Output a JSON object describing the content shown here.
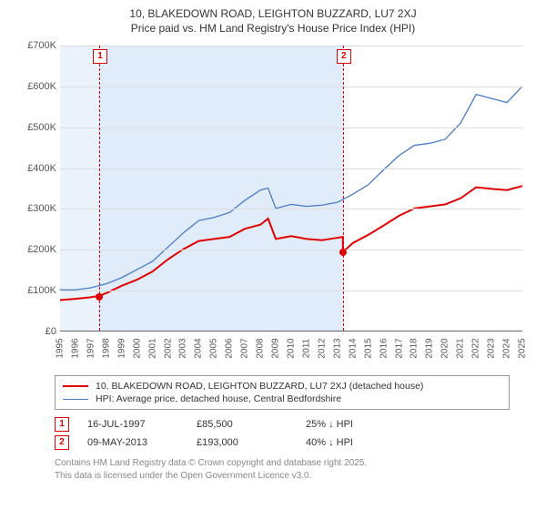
{
  "title": "10, BLAKEDOWN ROAD, LEIGHTON BUZZARD, LU7 2XJ",
  "subtitle": "Price paid vs. HM Land Registry's House Price Index (HPI)",
  "chart": {
    "type": "line",
    "background_color": "#ffffff",
    "grid_color": "#dddddd",
    "shade_color": "rgba(200,220,245,0.55)",
    "marker_color": "#e00000",
    "x": {
      "min": 1995,
      "max": 2025,
      "ticks": [
        1995,
        1996,
        1997,
        1998,
        1999,
        2000,
        2001,
        2002,
        2003,
        2004,
        2005,
        2006,
        2007,
        2008,
        2009,
        2010,
        2011,
        2012,
        2013,
        2014,
        2015,
        2016,
        2017,
        2018,
        2019,
        2020,
        2021,
        2022,
        2023,
        2024,
        2025
      ],
      "label_fontsize": 10
    },
    "y": {
      "min": 0,
      "max": 700000,
      "ticks": [
        0,
        100000,
        200000,
        300000,
        400000,
        500000,
        600000,
        700000
      ],
      "tick_labels": [
        "£0",
        "£100K",
        "£200K",
        "£300K",
        "£400K",
        "£500K",
        "£600K",
        "£700K"
      ],
      "label_fontsize": 11
    },
    "shaded_regions": [
      {
        "start": 1995,
        "end": 1997.54
      },
      {
        "start": 1997.54,
        "end": 2013.35
      }
    ],
    "series": [
      {
        "name": "price_paid",
        "label": "10, BLAKEDOWN ROAD, LEIGHTON BUZZARD, LU7 2XJ (detached house)",
        "color": "#e00000",
        "line_width": 2,
        "points": [
          [
            1995,
            75000
          ],
          [
            1996,
            78000
          ],
          [
            1997,
            82000
          ],
          [
            1997.54,
            85500
          ],
          [
            1998,
            92000
          ],
          [
            1999,
            110000
          ],
          [
            2000,
            125000
          ],
          [
            2001,
            145000
          ],
          [
            2002,
            175000
          ],
          [
            2003,
            200000
          ],
          [
            2004,
            220000
          ],
          [
            2005,
            225000
          ],
          [
            2006,
            230000
          ],
          [
            2007,
            250000
          ],
          [
            2008,
            260000
          ],
          [
            2008.5,
            275000
          ],
          [
            2009,
            225000
          ],
          [
            2010,
            232000
          ],
          [
            2011,
            225000
          ],
          [
            2012,
            222000
          ],
          [
            2013,
            228000
          ],
          [
            2013.35,
            230000
          ],
          [
            2013.36,
            193000
          ],
          [
            2014,
            215000
          ],
          [
            2015,
            235000
          ],
          [
            2016,
            258000
          ],
          [
            2017,
            282000
          ],
          [
            2018,
            300000
          ],
          [
            2019,
            305000
          ],
          [
            2020,
            310000
          ],
          [
            2021,
            325000
          ],
          [
            2022,
            352000
          ],
          [
            2023,
            348000
          ],
          [
            2024,
            345000
          ],
          [
            2025,
            355000
          ]
        ]
      },
      {
        "name": "hpi",
        "label": "HPI: Average price, detached house, Central Bedfordshire",
        "color": "#4a7bc8",
        "line_width": 1.3,
        "points": [
          [
            1995,
            100000
          ],
          [
            1996,
            100000
          ],
          [
            1997,
            105000
          ],
          [
            1998,
            115000
          ],
          [
            1999,
            130000
          ],
          [
            2000,
            150000
          ],
          [
            2001,
            170000
          ],
          [
            2002,
            205000
          ],
          [
            2003,
            240000
          ],
          [
            2004,
            270000
          ],
          [
            2005,
            278000
          ],
          [
            2006,
            290000
          ],
          [
            2007,
            320000
          ],
          [
            2008,
            345000
          ],
          [
            2008.5,
            350000
          ],
          [
            2009,
            300000
          ],
          [
            2010,
            310000
          ],
          [
            2011,
            305000
          ],
          [
            2012,
            308000
          ],
          [
            2013,
            315000
          ],
          [
            2014,
            335000
          ],
          [
            2015,
            358000
          ],
          [
            2016,
            395000
          ],
          [
            2017,
            430000
          ],
          [
            2018,
            455000
          ],
          [
            2019,
            460000
          ],
          [
            2020,
            470000
          ],
          [
            2021,
            510000
          ],
          [
            2022,
            580000
          ],
          [
            2023,
            570000
          ],
          [
            2024,
            560000
          ],
          [
            2025,
            600000
          ]
        ]
      }
    ],
    "markers": [
      {
        "n": "1",
        "x": 1997.54,
        "y": 85500,
        "date": "16-JUL-1997",
        "price": "£85,500",
        "delta": "25% ↓ HPI"
      },
      {
        "n": "2",
        "x": 2013.35,
        "y": 193000,
        "date": "09-MAY-2013",
        "price": "£193,000",
        "delta": "40% ↓ HPI"
      }
    ]
  },
  "attribution": {
    "line1": "Contains HM Land Registry data © Crown copyright and database right 2025.",
    "line2": "This data is licensed under the Open Government Licence v3.0."
  }
}
